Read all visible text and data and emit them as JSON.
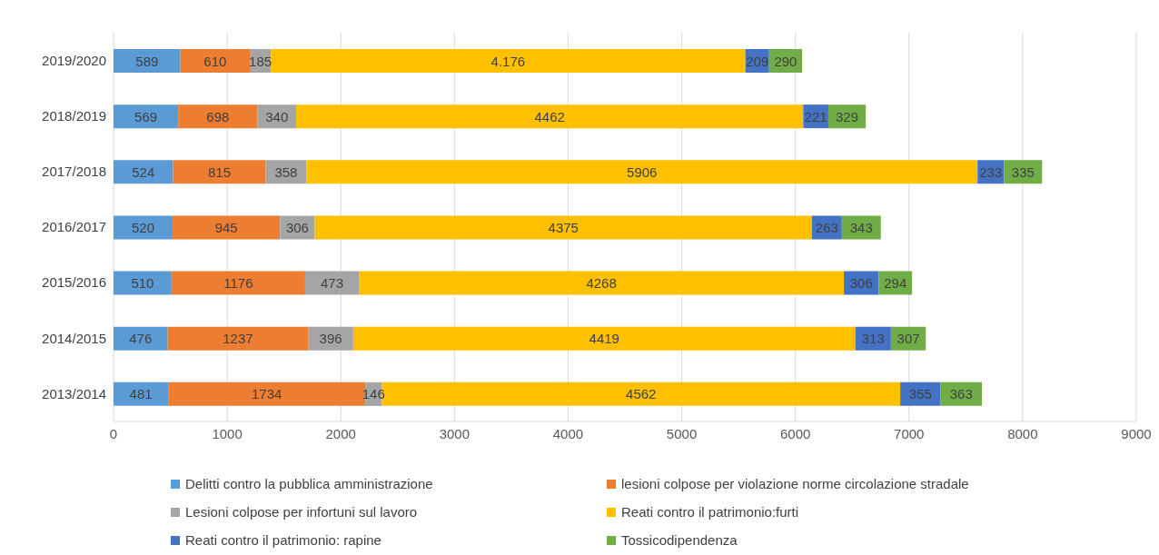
{
  "chart_data": {
    "type": "bar",
    "orientation": "horizontal",
    "stacked": true,
    "categories": [
      "2019/2020",
      "2018/2019",
      "2017/2018",
      "2016/2017",
      "2015/2016",
      "2014/2015",
      "2013/2014"
    ],
    "series": [
      {
        "name": "Delitti contro la pubblica amministrazione",
        "color": "#5b9bd5",
        "values": [
          589,
          569,
          524,
          520,
          510,
          476,
          481
        ],
        "value_labels": [
          "589",
          "569",
          "524",
          "520",
          "510",
          "476",
          "481"
        ]
      },
      {
        "name": "lesioni colpose per violazione norme circolazione stradale",
        "color": "#ed7d31",
        "values": [
          610,
          698,
          815,
          945,
          1176,
          1237,
          1734
        ],
        "value_labels": [
          "610",
          "698",
          "815",
          "945",
          "1176",
          "1237",
          "1734"
        ]
      },
      {
        "name": "Lesioni colpose per infortuni sul lavoro",
        "color": "#a5a5a5",
        "values": [
          185,
          340,
          358,
          306,
          473,
          396,
          146
        ],
        "value_labels": [
          "185",
          "340",
          "358",
          "306",
          "473",
          "396",
          "146"
        ]
      },
      {
        "name": "Reati contro il patrimonio:furti",
        "color": "#ffc000",
        "values": [
          4176,
          4462,
          5906,
          4375,
          4268,
          4419,
          4562
        ],
        "value_labels": [
          "4.176",
          "4462",
          "5906",
          "4375",
          "4268",
          "4419",
          "4562"
        ]
      },
      {
        "name": "Reati contro il patrimonio: rapine",
        "color": "#4472c4",
        "values": [
          209,
          221,
          233,
          263,
          306,
          313,
          355
        ],
        "value_labels": [
          "209",
          "221",
          "233",
          "263",
          "306",
          "313",
          "355"
        ]
      },
      {
        "name": "Tossicodipendenza",
        "color": "#70ad47",
        "values": [
          290,
          329,
          335,
          343,
          294,
          307,
          363
        ],
        "value_labels": [
          "290",
          "329",
          "335",
          "343",
          "294",
          "307",
          "363"
        ]
      }
    ],
    "xlim": [
      0,
      9000
    ],
    "xticks": [
      0,
      1000,
      2000,
      3000,
      4000,
      5000,
      6000,
      7000,
      8000,
      9000
    ],
    "grid": "x",
    "legend": "bottom"
  }
}
